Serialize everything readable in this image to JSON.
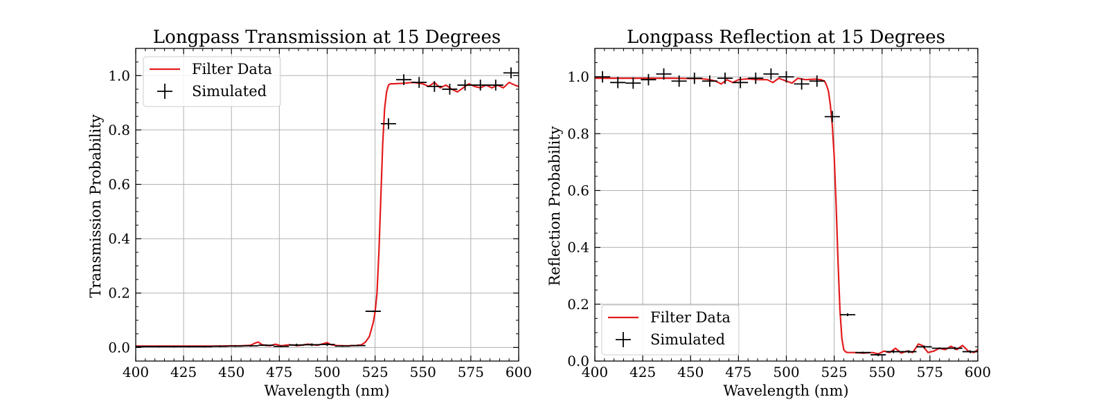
{
  "chart_data": [
    {
      "type": "line",
      "title": "Longpass Transmission at 15 Degrees",
      "xlabel": "Wavelength (nm)",
      "ylabel": "Transmission Probability",
      "xlim": [
        400,
        600
      ],
      "ylim": [
        -0.05,
        1.1
      ],
      "xticks": [
        "400",
        "425",
        "450",
        "475",
        "500",
        "525",
        "550",
        "575",
        "600"
      ],
      "xtick_values": [
        400,
        425,
        450,
        475,
        500,
        525,
        550,
        575,
        600
      ],
      "yticks": [
        "0.0",
        "0.2",
        "0.4",
        "0.6",
        "0.8",
        "1.0"
      ],
      "ytick_values": [
        0.0,
        0.2,
        0.4,
        0.6,
        0.8,
        1.0
      ],
      "grid": true,
      "legend_position": "top-left",
      "legend": [
        "Filter Data",
        "Simulated"
      ],
      "series": [
        {
          "name": "Filter Data",
          "style": "line",
          "color": "#e31a1c",
          "x": [
            400,
            410,
            420,
            430,
            440,
            450,
            455,
            460,
            462,
            464,
            466,
            470,
            473,
            476,
            480,
            485,
            490,
            495,
            500,
            502,
            505,
            510,
            515,
            518,
            520,
            522,
            524,
            525,
            526,
            527,
            528,
            529,
            530,
            531,
            532,
            533,
            535,
            540,
            545,
            550,
            553,
            556,
            559,
            562,
            565,
            568,
            571,
            574,
            577,
            580,
            583,
            586,
            589,
            592,
            595,
            598,
            600
          ],
          "y": [
            0.005,
            0.005,
            0.005,
            0.005,
            0.005,
            0.006,
            0.006,
            0.008,
            0.015,
            0.02,
            0.01,
            0.006,
            0.012,
            0.006,
            0.01,
            0.007,
            0.012,
            0.008,
            0.018,
            0.01,
            0.007,
            0.006,
            0.007,
            0.01,
            0.02,
            0.04,
            0.09,
            0.13,
            0.2,
            0.35,
            0.55,
            0.75,
            0.88,
            0.94,
            0.965,
            0.97,
            0.97,
            0.972,
            0.975,
            0.97,
            0.96,
            0.975,
            0.955,
            0.965,
            0.95,
            0.94,
            0.955,
            0.97,
            0.96,
            0.955,
            0.965,
            0.955,
            0.965,
            0.955,
            0.975,
            0.965,
            0.96
          ]
        },
        {
          "name": "Simulated",
          "style": "errorbar",
          "color": "#000000",
          "x": [
            404,
            412,
            420,
            428,
            436,
            444,
            452,
            460,
            468,
            476,
            484,
            492,
            500,
            508,
            516,
            524,
            532,
            540,
            548,
            556,
            564,
            572,
            580,
            588,
            596
          ],
          "xerr": 4,
          "yerr": [
            0.003,
            0.003,
            0.003,
            0.003,
            0.003,
            0.003,
            0.003,
            0.003,
            0.003,
            0.003,
            0.005,
            0.005,
            0.005,
            0.003,
            0.003,
            0.003,
            0.02,
            0.02,
            0.02,
            0.02,
            0.02,
            0.02,
            0.02,
            0.02,
            0.02
          ],
          "y": [
            0.003,
            0.003,
            0.003,
            0.003,
            0.003,
            0.004,
            0.005,
            0.006,
            0.008,
            0.004,
            0.009,
            0.01,
            0.011,
            0.005,
            0.007,
            0.133,
            0.823,
            0.985,
            0.975,
            0.96,
            0.95,
            0.965,
            0.965,
            0.965,
            1.01
          ]
        }
      ]
    },
    {
      "type": "line",
      "title": "Longpass Reflection at 15 Degrees",
      "xlabel": "Wavelength (nm)",
      "ylabel": "Reflection Probability",
      "xlim": [
        400,
        600
      ],
      "ylim": [
        0.0,
        1.1
      ],
      "xticks": [
        "400",
        "425",
        "450",
        "475",
        "500",
        "525",
        "550",
        "575",
        "600"
      ],
      "xtick_values": [
        400,
        425,
        450,
        475,
        500,
        525,
        550,
        575,
        600
      ],
      "yticks": [
        "0.0",
        "0.2",
        "0.4",
        "0.6",
        "0.8",
        "1.0"
      ],
      "ytick_values": [
        0.0,
        0.2,
        0.4,
        0.6,
        0.8,
        1.0
      ],
      "grid": true,
      "legend_position": "bottom-left",
      "legend": [
        "Filter Data",
        "Simulated"
      ],
      "series": [
        {
          "name": "Filter Data",
          "style": "line",
          "color": "#e31a1c",
          "x": [
            400,
            410,
            420,
            430,
            440,
            450,
            455,
            460,
            463,
            466,
            469,
            472,
            475,
            480,
            485,
            490,
            493,
            496,
            500,
            503,
            506,
            510,
            515,
            518,
            520,
            521,
            522,
            523,
            524,
            525,
            526,
            527,
            528,
            529,
            530,
            531,
            532,
            533,
            535,
            540,
            545,
            548,
            551,
            554,
            557,
            560,
            563,
            566,
            569,
            571,
            574,
            577,
            580,
            583,
            586,
            589,
            592,
            595,
            598,
            600
          ],
          "y": [
            0.995,
            0.995,
            0.995,
            0.995,
            0.995,
            0.994,
            0.994,
            0.99,
            0.985,
            0.975,
            0.99,
            0.98,
            0.99,
            0.993,
            0.99,
            0.99,
            0.98,
            0.995,
            0.985,
            0.978,
            0.995,
            0.99,
            0.992,
            0.99,
            0.985,
            0.97,
            0.95,
            0.9,
            0.83,
            0.72,
            0.55,
            0.35,
            0.18,
            0.08,
            0.04,
            0.032,
            0.03,
            0.03,
            0.03,
            0.028,
            0.03,
            0.025,
            0.035,
            0.03,
            0.045,
            0.028,
            0.035,
            0.03,
            0.06,
            0.055,
            0.03,
            0.035,
            0.045,
            0.04,
            0.052,
            0.04,
            0.055,
            0.035,
            0.03,
            0.04
          ]
        },
        {
          "name": "Simulated",
          "style": "errorbar",
          "color": "#000000",
          "x": [
            404,
            412,
            420,
            428,
            436,
            444,
            452,
            460,
            468,
            476,
            484,
            492,
            500,
            508,
            516,
            524,
            532,
            540,
            548,
            556,
            564,
            572,
            580,
            588,
            596
          ],
          "xerr": 4,
          "yerr": [
            0.02,
            0.02,
            0.02,
            0.02,
            0.02,
            0.02,
            0.02,
            0.02,
            0.02,
            0.02,
            0.02,
            0.02,
            0.02,
            0.02,
            0.02,
            0.02,
            0.005,
            0.003,
            0.005,
            0.005,
            0.005,
            0.005,
            0.003,
            0.005,
            0.005
          ],
          "y": [
            1.0,
            0.98,
            0.978,
            0.99,
            1.01,
            0.985,
            0.995,
            0.985,
            0.995,
            0.98,
            0.995,
            1.01,
            1.0,
            0.975,
            0.985,
            0.86,
            0.163,
            0.03,
            0.022,
            0.033,
            0.033,
            0.05,
            0.045,
            0.045,
            0.033
          ]
        }
      ]
    }
  ]
}
